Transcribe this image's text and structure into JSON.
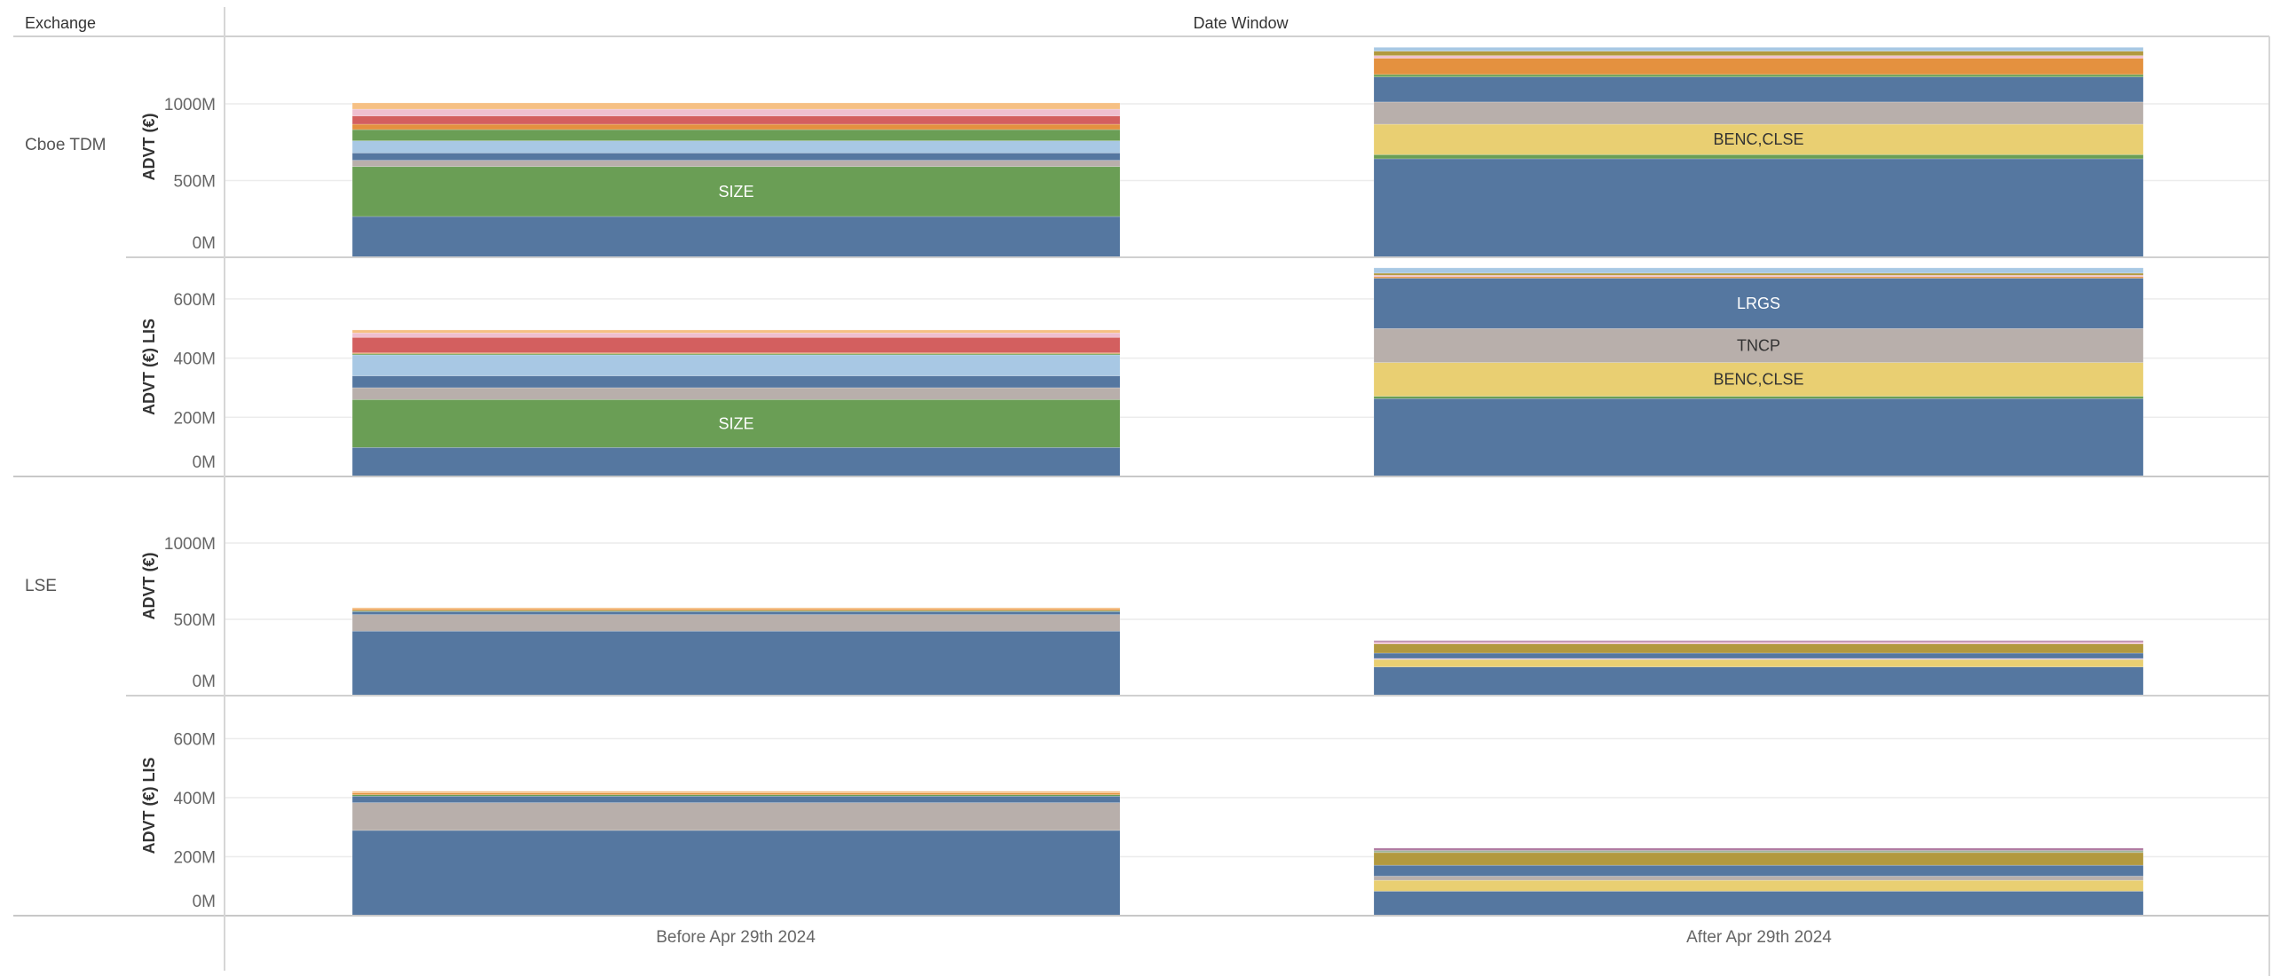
{
  "header": {
    "exchange": "Exchange",
    "date_window": "Date Window"
  },
  "chart_data": {
    "type": "bar",
    "stacked": true,
    "row_dimension": "Exchange",
    "column_dimension": "Date Window",
    "categories": [
      "Before Apr 29th 2024",
      "After Apr 29th 2024"
    ],
    "exchanges": [
      "Cboe TDM",
      "LSE"
    ],
    "panels": [
      {
        "exchange_index": 0,
        "exchange": "Cboe TDM",
        "ylabel": "ADVT (€)",
        "ylim": [
          0,
          1440
        ],
        "ticks": [
          0,
          500,
          1000
        ],
        "tick_labels": [
          "0M",
          "500M",
          "1000M"
        ],
        "bars": [
          {
            "segments": [
              {
                "value": 266,
                "color": "#5577a0"
              },
              {
                "value": 325,
                "color": "#6a9e55",
                "label": "SIZE",
                "label_color": "#ffffff"
              },
              {
                "value": 41,
                "color": "#b8afab"
              },
              {
                "value": 48,
                "color": "#5577a0"
              },
              {
                "value": 79,
                "color": "#a8c8e4"
              },
              {
                "value": 73,
                "color": "#6a9e55"
              },
              {
                "value": 35,
                "color": "#e4913f"
              },
              {
                "value": 54,
                "color": "#d35f5f"
              },
              {
                "value": 44,
                "color": "#efbfd0"
              },
              {
                "value": 41,
                "color": "#f6c084"
              }
            ]
          },
          {
            "segments": [
              {
                "value": 642,
                "color": "#5577a0"
              },
              {
                "value": 27,
                "color": "#6a9e55"
              },
              {
                "value": 198,
                "color": "#e9cf72",
                "label": "BENC,CLSE",
                "label_color": "#333333"
              },
              {
                "value": 145,
                "color": "#b8afab"
              },
              {
                "value": 163,
                "color": "#5577a0"
              },
              {
                "value": 16,
                "color": "#6a9e55"
              },
              {
                "value": 106,
                "color": "#e4913f"
              },
              {
                "value": 17,
                "color": "#efbfd0"
              },
              {
                "value": 29,
                "color": "#b2993f"
              },
              {
                "value": 25,
                "color": "#a8c8e4"
              }
            ]
          }
        ]
      },
      {
        "exchange_index": 0,
        "exchange": "Cboe TDM",
        "ylabel": "ADVT (€) LIS",
        "ylim": [
          0,
          745
        ],
        "ticks": [
          0,
          200,
          400,
          600
        ],
        "tick_labels": [
          "0M",
          "200M",
          "400M",
          "600M"
        ],
        "bars": [
          {
            "segments": [
              {
                "value": 98,
                "color": "#5577a0"
              },
              {
                "value": 162,
                "color": "#6a9e55",
                "label": "SIZE",
                "label_color": "#ffffff"
              },
              {
                "value": 40,
                "color": "#b8afab"
              },
              {
                "value": 40,
                "color": "#5577a0"
              },
              {
                "value": 71,
                "color": "#a8c8e4"
              },
              {
                "value": 4,
                "color": "#6a9e55"
              },
              {
                "value": 3,
                "color": "#e4913f"
              },
              {
                "value": 52,
                "color": "#d35f5f"
              },
              {
                "value": 15,
                "color": "#efbfd0"
              },
              {
                "value": 10,
                "color": "#f6c084"
              }
            ]
          },
          {
            "segments": [
              {
                "value": 263,
                "color": "#5577a0"
              },
              {
                "value": 8,
                "color": "#6a9e55"
              },
              {
                "value": 114,
                "color": "#e9cf72",
                "label": "BENC,CLSE",
                "label_color": "#333333"
              },
              {
                "value": 115,
                "color": "#b8afab",
                "label": "TNCP",
                "label_color": "#333333"
              },
              {
                "value": 170,
                "color": "#5577a0",
                "label": "LRGS",
                "label_color": "#ffffff"
              },
              {
                "value": 5,
                "color": "#e4913f"
              },
              {
                "value": 5,
                "color": "#efbfd0"
              },
              {
                "value": 7,
                "color": "#b2993f"
              },
              {
                "value": 18,
                "color": "#a8c8e4"
              }
            ]
          }
        ]
      },
      {
        "exchange_index": 1,
        "exchange": "LSE",
        "ylabel": "ADVT (€)",
        "ylim": [
          0,
          1440
        ],
        "ticks": [
          0,
          500,
          1000
        ],
        "tick_labels": [
          "0M",
          "500M",
          "1000M"
        ],
        "bars": [
          {
            "segments": [
              {
                "value": 423,
                "color": "#5577a0"
              },
              {
                "value": 108,
                "color": "#b8afab"
              },
              {
                "value": 20,
                "color": "#5577a0"
              },
              {
                "value": 6,
                "color": "#6a9e55"
              },
              {
                "value": 10,
                "color": "#e4913f"
              },
              {
                "value": 9,
                "color": "#f6c084"
              }
            ]
          },
          {
            "segments": [
              {
                "value": 188,
                "color": "#5577a0"
              },
              {
                "value": 49,
                "color": "#e9cf72"
              },
              {
                "value": 7,
                "color": "#c9b6d6"
              },
              {
                "value": 35,
                "color": "#5577a0"
              },
              {
                "value": 60,
                "color": "#b2993f"
              },
              {
                "value": 11,
                "color": "#efbfd0"
              },
              {
                "value": 10,
                "color": "#b07aa1"
              }
            ]
          }
        ]
      },
      {
        "exchange_index": 1,
        "exchange": "LSE",
        "ylabel": "ADVT (€) LIS",
        "ylim": [
          0,
          745
        ],
        "ticks": [
          0,
          200,
          400,
          600
        ],
        "tick_labels": [
          "0M",
          "200M",
          "400M",
          "600M"
        ],
        "bars": [
          {
            "segments": [
              {
                "value": 289,
                "color": "#5577a0"
              },
              {
                "value": 94,
                "color": "#b8afab"
              },
              {
                "value": 22,
                "color": "#5577a0"
              },
              {
                "value": 5,
                "color": "#6a9e55"
              },
              {
                "value": 6,
                "color": "#e4913f"
              },
              {
                "value": 6,
                "color": "#f6c084"
              }
            ]
          },
          {
            "segments": [
              {
                "value": 83,
                "color": "#5577a0"
              },
              {
                "value": 37,
                "color": "#e9cf72"
              },
              {
                "value": 14,
                "color": "#b8afab"
              },
              {
                "value": 37,
                "color": "#5577a0"
              },
              {
                "value": 43,
                "color": "#b2993f"
              },
              {
                "value": 7,
                "color": "#9fb59a"
              },
              {
                "value": 8,
                "color": "#b07aa1"
              }
            ]
          }
        ]
      }
    ]
  }
}
